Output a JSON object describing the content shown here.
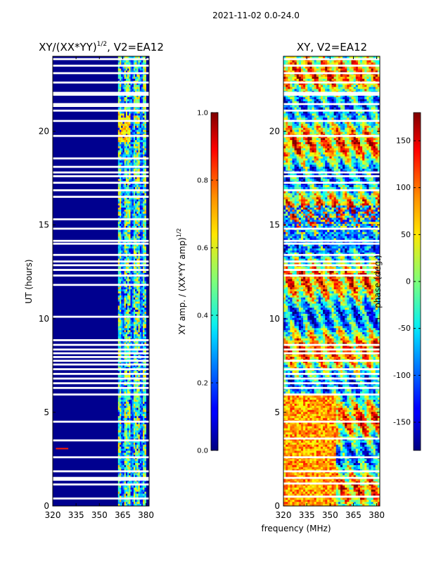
{
  "figure_title": "2021-11-02 0.0-24.0",
  "chart_data": [
    {
      "type": "heatmap",
      "title": "XY/(XX*YY)^1/2, V2=EA12",
      "title_main": "XY/(XX*YY)",
      "title_sup": "1/2",
      "title_suffix": ", V2=EA12",
      "xlabel": "",
      "ylabel": "UT (hours)",
      "xlim": [
        320,
        382
      ],
      "ylim": [
        0,
        24
      ],
      "xticks": [
        320,
        335,
        350,
        365,
        380
      ],
      "yticks": [
        0,
        5,
        10,
        15,
        20
      ],
      "colorbar": {
        "label": "XY amp. / (XX*YY amp)^1/2",
        "label_main": "XY amp. / (XX*YY amp)",
        "label_sup": "1/2",
        "range": [
          0.0,
          1.0
        ],
        "ticks": [
          "0.0",
          "0.2",
          "0.4",
          "0.6",
          "0.8",
          "1.0"
        ],
        "colormap": "jet"
      },
      "active_band_mhz": [
        362,
        380
      ],
      "background_value": 0.0,
      "blank_rows_ut": [
        0.4,
        1.15,
        1.4,
        1.5,
        1.85,
        2.6,
        3.5,
        4.5,
        5.95,
        6.3,
        6.55,
        6.8,
        7.05,
        7.3,
        7.55,
        7.75,
        7.95,
        8.15,
        8.35,
        8.6,
        8.85,
        10.1,
        11.8,
        12.3,
        12.6,
        12.85,
        13.05,
        13.4,
        14.0,
        14.15,
        14.8,
        15.3,
        16.5,
        16.85,
        17.25,
        17.6,
        17.8,
        18.1,
        18.55,
        19.75,
        20.55,
        21.1,
        21.35,
        21.45,
        21.95,
        22.05,
        22.6,
        23.1,
        23.5,
        23.85
      ]
    },
    {
      "type": "heatmap",
      "title": "XY, V2=EA12",
      "xlabel": "frequency (MHz)",
      "ylabel": "",
      "xlim": [
        320,
        382
      ],
      "ylim": [
        0,
        24
      ],
      "xticks": [
        320,
        335,
        350,
        365,
        380
      ],
      "yticks": [
        0,
        5,
        10,
        15,
        20
      ],
      "colorbar": {
        "label": "phase (deg.)",
        "range": [
          -180,
          180
        ],
        "ticks": [
          -150,
          -100,
          -50,
          0,
          50,
          100,
          150
        ],
        "colormap": "jet"
      },
      "blank_rows_ut": [
        0.5,
        1.2,
        1.5,
        1.85,
        2.6,
        3.6,
        4.5,
        5.95,
        6.3,
        6.55,
        6.8,
        7.05,
        7.3,
        7.75,
        8.15,
        8.35,
        8.6,
        12.3,
        12.6,
        12.85,
        13.05,
        13.4,
        14.0,
        14.15,
        14.8,
        16.85,
        17.25,
        17.6,
        17.8,
        19.75,
        20.55,
        21.1,
        21.45,
        21.95,
        22.05,
        22.6,
        23.1,
        23.5,
        23.85
      ]
    }
  ]
}
